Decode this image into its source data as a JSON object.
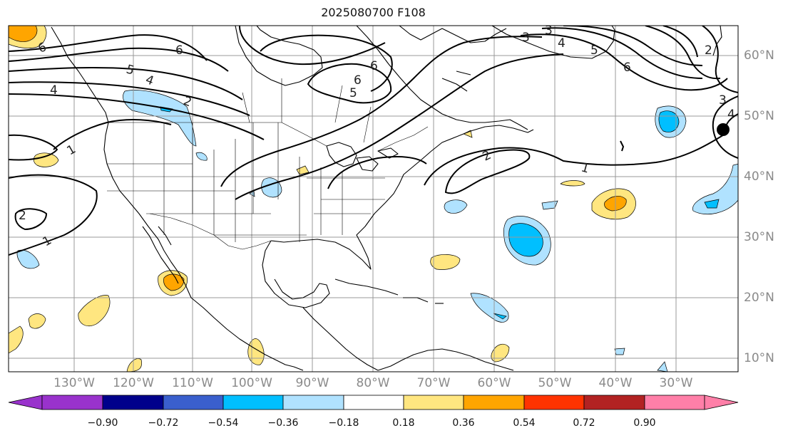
{
  "title": "2025080700 F108",
  "map": {
    "longitude_labels": [
      "130°W",
      "120°W",
      "110°W",
      "100°W",
      "90°W",
      "80°W",
      "70°W",
      "60°W",
      "50°W",
      "40°W",
      "30°W"
    ],
    "latitude_labels": [
      "60°N",
      "50°N",
      "40°N",
      "30°N",
      "20°N",
      "10°N"
    ],
    "contour_labels": [
      "6",
      "6",
      "5",
      "4",
      "4",
      "2",
      "1",
      "2",
      "1",
      "6",
      "6",
      "5",
      "3",
      "3",
      "4",
      "5",
      "6",
      "2",
      "3",
      "4",
      "2",
      "1"
    ]
  },
  "colorbar": {
    "ticks": [
      "−0.90",
      "−0.72",
      "−0.54",
      "−0.36",
      "−0.18",
      "0.18",
      "0.36",
      "0.54",
      "0.72",
      "0.90"
    ],
    "colors": [
      "#9932cc",
      "#00008b",
      "#3a5fcd",
      "#00bfff",
      "#b0e2ff",
      "#ffffff",
      "#ffe680",
      "#ffa500",
      "#ff3300",
      "#b22222",
      "#ff7fa8"
    ]
  }
}
